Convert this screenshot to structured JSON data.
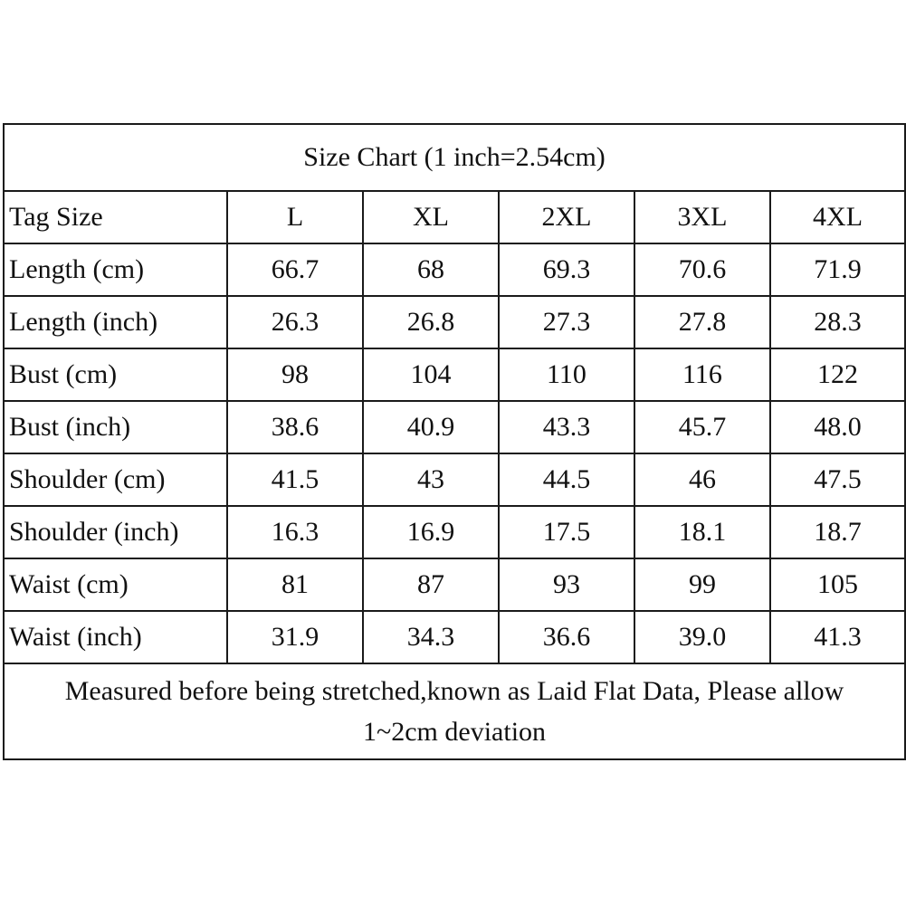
{
  "title": "Size Chart (1 inch=2.54cm)",
  "header": {
    "label": "Tag Size",
    "sizes": [
      "L",
      "XL",
      "2XL",
      "3XL",
      "4XL"
    ]
  },
  "rows": [
    {
      "label": "Length (cm)",
      "values": [
        "66.7",
        "68",
        "69.3",
        "70.6",
        "71.9"
      ]
    },
    {
      "label": "Length (inch)",
      "values": [
        "26.3",
        "26.8",
        "27.3",
        "27.8",
        "28.3"
      ]
    },
    {
      "label": "Bust  (cm)",
      "values": [
        "98",
        "104",
        "110",
        "116",
        "122"
      ]
    },
    {
      "label": "Bust (inch)",
      "values": [
        "38.6",
        "40.9",
        "43.3",
        "45.7",
        "48.0"
      ]
    },
    {
      "label": "Shoulder (cm)",
      "values": [
        "41.5",
        "43",
        "44.5",
        "46",
        "47.5"
      ]
    },
    {
      "label": "Shoulder (inch)",
      "values": [
        "16.3",
        "16.9",
        "17.5",
        "18.1",
        "18.7"
      ]
    },
    {
      "label": "Waist (cm)",
      "values": [
        "81",
        "87",
        "93",
        "99",
        "105"
      ]
    },
    {
      "label": "Waist (inch)",
      "values": [
        "31.9",
        "34.3",
        "36.6",
        "39.0",
        "41.3"
      ]
    }
  ],
  "note": {
    "line1": "Measured before being stretched,known as Laid Flat Data, Please allow",
    "line2": "1~2cm deviation"
  }
}
